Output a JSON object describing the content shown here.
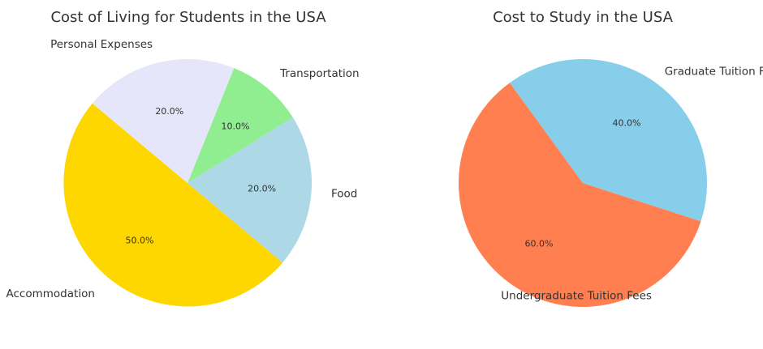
{
  "chart_data": [
    {
      "type": "pie",
      "title": "Cost of Living for Students in the USA",
      "categories": [
        "Accommodation",
        "Food",
        "Transportation",
        "Personal Expenses"
      ],
      "values": [
        50,
        20,
        10,
        20
      ],
      "value_labels": [
        "50.0%",
        "20.0%",
        "10.0%",
        "20.0%"
      ],
      "colors": [
        "#FFD700",
        "#ADD8E6",
        "#90EE90",
        "#E6E6FA"
      ]
    },
    {
      "type": "pie",
      "title": "Cost to Study in the USA",
      "categories": [
        "Undergraduate Tuition Fees",
        "Graduate Tuition Fees"
      ],
      "values": [
        60,
        40
      ],
      "value_labels": [
        "60.0%",
        "40.0%"
      ],
      "colors": [
        "#FF7F50",
        "#87CEEB"
      ]
    }
  ]
}
